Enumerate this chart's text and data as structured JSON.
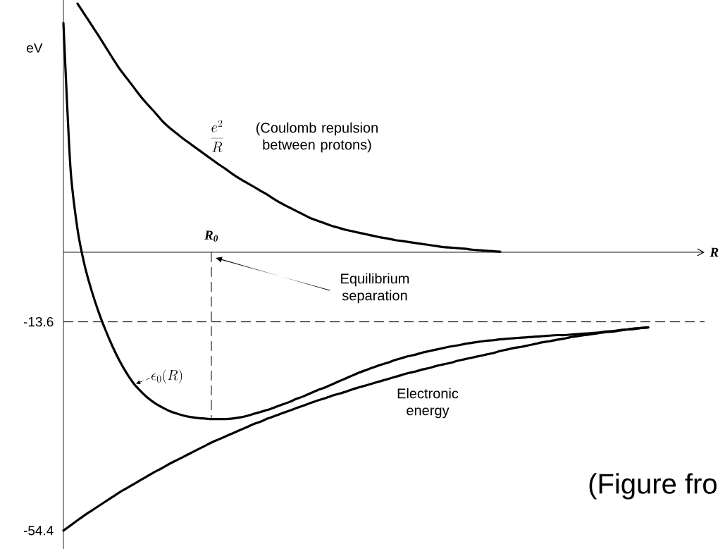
{
  "chart_data": {
    "type": "line",
    "xlabel": "R",
    "ylabel": "eV",
    "categories": [
      null,
      null,
      null,
      null,
      null,
      null,
      null,
      null,
      null,
      null,
      null,
      null,
      null,
      null,
      null,
      null,
      null,
      null,
      null,
      null,
      null,
      "R$_{0}$",
      null,
      null,
      null,
      null,
      null,
      null,
      null,
      null,
      null,
      null,
      null,
      null,
      null,
      null,
      null,
      null,
      null,
      null,
      null,
      null,
      null,
      null,
      null,
      null,
      null,
      null,
      null,
      null,
      null,
      null,
      null,
      null,
      null,
      null,
      null,
      null,
      null,
      null,
      null,
      null,
      null,
      null,
      null,
      null,
      null,
      null,
      null,
      null,
      null,
      null,
      null,
      null,
      null,
      null,
      null,
      null,
      null,
      null,
      null,
      null,
      null,
      null,
      null,
      null,
      null,
      null,
      null,
      null,
      null,
      null
    ],
    "series": [
      {
        "name": "\\frac{e^{2}}{R}",
        "color": "#000000",
        "values": [
          null,
          null,
          48.6,
          46.5,
          44.4,
          42.3,
          40.1,
          37.9,
          35.8,
          34.0,
          32.2,
          30.4,
          28.8,
          27.3,
          25.7,
          24.4,
          23.3,
          22.2,
          21.2,
          20.2,
          19.2,
          18.2,
          17.2,
          16.3,
          15.3,
          14.4,
          13.6,
          12.8,
          12.0,
          11.2,
          10.3,
          9.5,
          8.8,
          8.1,
          7.4,
          6.7,
          6.2,
          5.7,
          5.2,
          4.8,
          4.4,
          4.1,
          3.8,
          3.5,
          3.2,
          2.9,
          2.7,
          2.4,
          2.2,
          2.0,
          1.8,
          1.6,
          1.4,
          1.2,
          1.0,
          0.9,
          0.8,
          0.7,
          0.5,
          0.4,
          0.3,
          0.2,
          0.1,
          null,
          null,
          null,
          null,
          null,
          null,
          null,
          null,
          null,
          null,
          null,
          null,
          null,
          null,
          null,
          null,
          null,
          null,
          null,
          null,
          null,
          null,
          null,
          null,
          null,
          null,
          null,
          null,
          null
        ]
      },
      {
        "name": "\\epsilon_{0}(R)",
        "color": "#000000",
        "values": [
          44.8,
          16.5,
          4.5,
          -2.5,
          -7.5,
          -11.7,
          -15.3,
          -18.5,
          -21.3,
          -23.7,
          -25.7,
          -27.2,
          -28.5,
          -29.5,
          -30.3,
          -31.0,
          -31.5,
          -31.9,
          -32.2,
          -32.4,
          -32.5,
          -32.6,
          -32.6,
          -32.6,
          -32.5,
          -32.3,
          -32.0,
          -31.6,
          -31.2,
          -30.8,
          -30.3,
          -29.8,
          -29.3,
          -28.7,
          -28.2,
          -27.6,
          -27.0,
          -26.5,
          -25.9,
          -25.3,
          -24.7,
          -24.1,
          -23.5,
          -23.0,
          -22.5,
          -22.0,
          -21.6,
          -21.1,
          -20.7,
          -20.3,
          -20.0,
          -19.6,
          -19.3,
          -19.0,
          -18.7,
          -18.4,
          -18.2,
          -17.9,
          -17.7,
          -17.5,
          -17.3,
          -17.2,
          -17.0,
          -16.9,
          -16.8,
          -16.7,
          -16.6,
          -16.5,
          -16.4,
          -16.3,
          -16.2,
          -16.2,
          -16.1,
          -16.0,
          -15.9,
          -15.8,
          -15.7,
          -15.5,
          -15.4,
          -15.2,
          -15.1,
          -14.9,
          -14.8,
          -14.7,
          null,
          null,
          null,
          null,
          null,
          null,
          null,
          null
        ]
      },
      {
        "name": "Electronic energy",
        "color": "#000000",
        "values": [
          -54.4,
          -53.4,
          -52.4,
          -51.4,
          -50.5,
          -49.6,
          -48.7,
          -47.8,
          -46.9,
          -46.1,
          -45.3,
          -44.5,
          -43.7,
          -42.9,
          -42.2,
          -41.4,
          -40.7,
          -40.0,
          -39.3,
          -38.6,
          -37.9,
          -37.2,
          -36.6,
          -36.0,
          -35.4,
          -34.8,
          -34.2,
          -33.6,
          -33.1,
          -32.5,
          -32.0,
          -31.5,
          -31.0,
          -30.5,
          -30.0,
          -29.5,
          -29.0,
          -28.6,
          -28.1,
          -27.7,
          -27.3,
          -26.8,
          -26.4,
          -26.0,
          -25.6,
          -25.2,
          -24.8,
          -24.4,
          -24.0,
          -23.6,
          -23.3,
          -22.9,
          -22.6,
          -22.2,
          -21.9,
          -21.6,
          -21.2,
          -20.9,
          -20.6,
          -20.3,
          -20.0,
          -19.7,
          -19.3,
          -19.0,
          -18.7,
          -18.5,
          -18.2,
          -17.9,
          -17.6,
          -17.4,
          -17.1,
          -16.9,
          -16.6,
          -16.4,
          -16.2,
          -16.0,
          -15.8,
          -15.6,
          -15.5,
          -15.3,
          -15.1,
          -15.0,
          -14.8,
          -14.7,
          null,
          null,
          null,
          null,
          null,
          null,
          null,
          null
        ]
      }
    ],
    "ylim": [
      -58,
      49.3
    ],
    "yticks": [
      -54.4,
      -13.6
    ],
    "ref_lines": [
      {
        "axis": "y",
        "value": -13.6,
        "line_style": "dashed"
      },
      {
        "axis": "x",
        "value": "R$_{0}$",
        "line_style": "dashed"
      }
    ],
    "annotations": [
      "(Coulomb repulsion between protons)",
      "Equilibrium separation",
      "(Figure fro"
    ]
  }
}
